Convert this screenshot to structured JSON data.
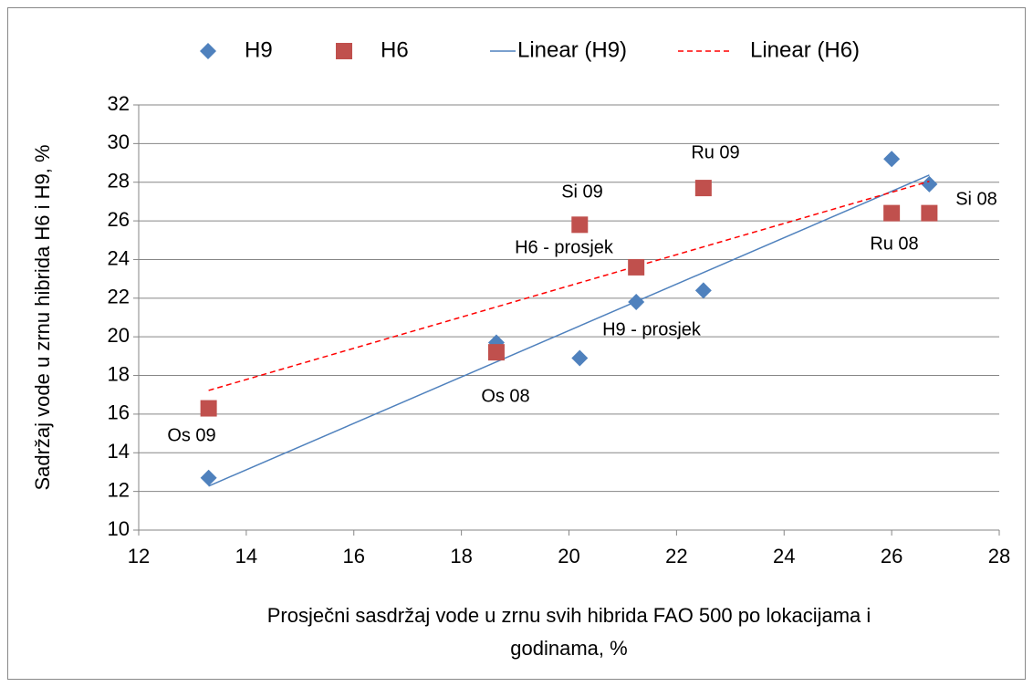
{
  "chart_data": {
    "type": "scatter",
    "xlabel": [
      "Prosječni sasdržaj vode u zrnu svih hibrida FAO 500 po lokacijama i",
      "godinama, %"
    ],
    "ylabel": "Sadržaj vode u zrnu hibrida H6 i H9, %",
    "xlim": [
      12,
      28
    ],
    "xticks": [
      12,
      14,
      16,
      18,
      20,
      22,
      24,
      26,
      28
    ],
    "ylim": [
      10,
      32
    ],
    "yticks": [
      10,
      12,
      14,
      16,
      18,
      20,
      22,
      24,
      26,
      28,
      30,
      32
    ],
    "grid": true,
    "legend": "top",
    "series": [
      {
        "name": "H9",
        "color": "#4f81bd",
        "marker": "diamond",
        "x": [
          13.3,
          18.65,
          20.2,
          21.25,
          22.5,
          26.0,
          26.7
        ],
        "values": [
          12.7,
          19.7,
          18.9,
          21.8,
          22.4,
          29.2,
          27.9
        ],
        "trendline": {
          "name": "Linear (H9)",
          "color": "#4f81bd",
          "dashed": false
        }
      },
      {
        "name": "H6",
        "color": "#c0504d",
        "marker": "square",
        "x": [
          13.3,
          18.65,
          20.2,
          21.25,
          22.5,
          26.0,
          26.7
        ],
        "values": [
          16.3,
          19.2,
          25.8,
          23.6,
          27.7,
          26.4,
          26.4
        ],
        "trendline": {
          "name": "Linear (H6)",
          "color": "#ff0000",
          "dashed": true
        }
      }
    ],
    "annotations": [
      "Os 09",
      "Os 08",
      "H9 - prosjek",
      "H6 - prosjek",
      "Si 09",
      "Ru 09",
      "Ru 08",
      "Si 08"
    ]
  }
}
